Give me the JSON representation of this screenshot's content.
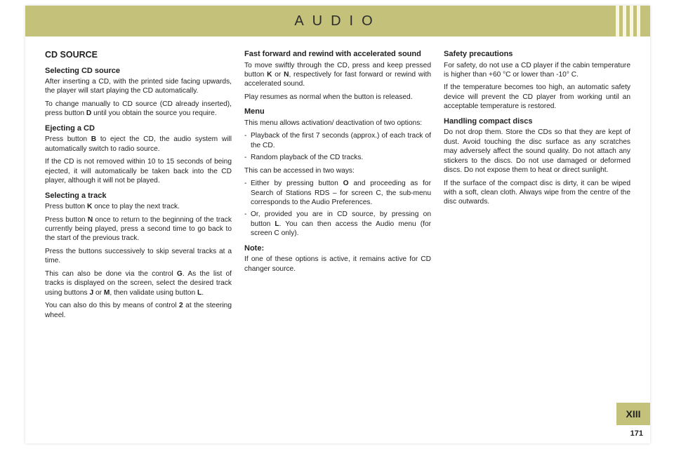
{
  "header": {
    "title": "AUDIO"
  },
  "columns": {
    "left": {
      "h2": "CD SOURCE",
      "s1_h": "Selecting CD source",
      "s1_p1": "After inserting a CD, with the printed side facing upwards, the player will start playing the CD automatically.",
      "s1_p2a": "To change manually to CD source (CD already inserted), press button ",
      "s1_p2_bold": "D",
      "s1_p2b": " until you obtain the source you require.",
      "s2_h": "Ejecting a CD",
      "s2_p1a": "Press button ",
      "s2_p1_bold": "B",
      "s2_p1b": " to eject the CD, the audio system will automatically switch to radio source.",
      "s2_p2": "If the CD is not removed within 10 to 15 seconds of being ejected, it will automatically be taken back into the CD player, although it will not be played.",
      "s3_h": "Selecting a track",
      "s3_p1a": "Press button ",
      "s3_p1_bold": "K",
      "s3_p1b": " once to play the next track.",
      "s3_p2a": "Press button ",
      "s3_p2_bold": "N",
      "s3_p2b": " once to return to the beginning of the track currently being played, press a second time to go back to the start of the previous track.",
      "s3_p3": "Press the buttons successively to skip several tracks at a time.",
      "s3_p4a": "This can also be done via the control ",
      "s3_p4_bold1": "G",
      "s3_p4b": ". As the list of tracks is displayed on the screen, select the desired track using buttons ",
      "s3_p4_bold2": "J",
      "s3_p4c": " or ",
      "s3_p4_bold3": "M",
      "s3_p4d": ", then validate using button ",
      "s3_p4_bold4": "L",
      "s3_p4e": ".",
      "s3_p5a": "You can also do this by means of control ",
      "s3_p5_bold": "2",
      "s3_p5b": " at the steering wheel."
    },
    "mid": {
      "s1_h": "Fast forward and rewind with accelerated sound",
      "s1_p1a": "To move swiftly through the CD, press and keep pressed button ",
      "s1_p1_bold1": "K",
      "s1_p1b": " or ",
      "s1_p1_bold2": "N",
      "s1_p1c": ", respectively for fast forward or rewind with accelerated sound.",
      "s1_p2": "Play resumes as normal when the button is released.",
      "s2_h": "Menu",
      "s2_p1": "This menu allows activation/ deactivation of two options:",
      "s2_li1": "Playback of the first 7 seconds (approx.) of each track of the CD.",
      "s2_li2": "Random playback of the CD tracks.",
      "s2_p2": "This can be accessed in two ways:",
      "s2_li3a": "Either by pressing button ",
      "s2_li3_bold": "O",
      "s2_li3b": " and proceeding as for Search of Stations RDS – for screen C, the sub-menu corresponds to the Audio Preferences.",
      "s2_li4a": "Or, provided you are in CD source, by pressing on button ",
      "s2_li4_bold": "L",
      "s2_li4b": ". You can then access the Audio menu (for screen C only).",
      "s3_h": "Note:",
      "s3_p1": "If one of these options is active, it remains active for CD changer source."
    },
    "right": {
      "s1_h": "Safety precautions",
      "s1_p1": "For safety, do not use a CD player if the cabin temperature is higher than +60 °C or lower than -10° C.",
      "s1_p2": "If the temperature becomes too high, an automatic safety device will prevent the CD player from working until an acceptable temperature is restored.",
      "s2_h": "Handling compact discs",
      "s2_p1": "Do not drop them. Store the CDs so that they are kept of dust. Avoid touching the disc surface as any scratches may adversely affect the sound quality. Do not attach any stickers to the discs. Do not use damaged or deformed discs. Do not expose them to heat or direct sunlight.",
      "s2_p2": "If the surface of the compact disc is dirty, it can be wiped with a soft, clean cloth. Always wipe from the centre of the disc outwards."
    }
  },
  "footer": {
    "chapter": "XIII",
    "page": "171"
  },
  "colors": {
    "accent": "#c4c17a",
    "text": "#222222",
    "bg": "#ffffff"
  }
}
